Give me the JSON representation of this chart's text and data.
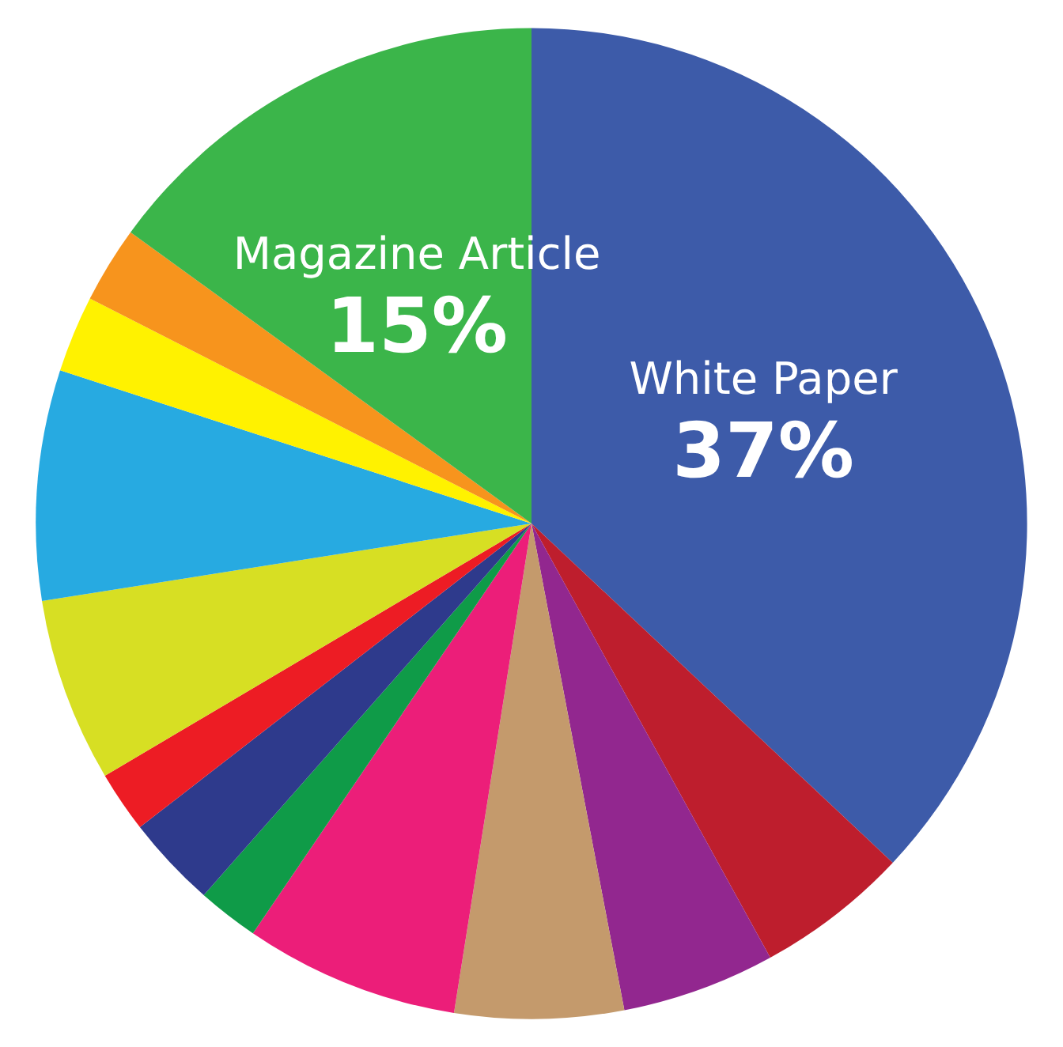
{
  "chart_data": {
    "type": "pie",
    "categories": [
      "White Paper",
      null,
      null,
      null,
      null,
      null,
      null,
      null,
      null,
      null,
      null,
      null,
      "Magazine Article"
    ],
    "values": [
      37,
      5,
      5,
      5.5,
      7,
      2,
      3,
      2,
      6,
      7.5,
      2.5,
      2.5,
      15
    ],
    "value_labels": [
      "37%",
      null,
      null,
      null,
      null,
      null,
      null,
      null,
      null,
      null,
      null,
      null,
      "15%"
    ],
    "colors": [
      "#3d5ba9",
      "#be1e2d",
      "#92278f",
      "#c49a6c",
      "#ec1e79",
      "#0f9b48",
      "#2e3a8c",
      "#ed1c24",
      "#d7df23",
      "#27aae1",
      "#fff200",
      "#f7941d",
      "#3bb54a"
    ],
    "legend": false
  }
}
